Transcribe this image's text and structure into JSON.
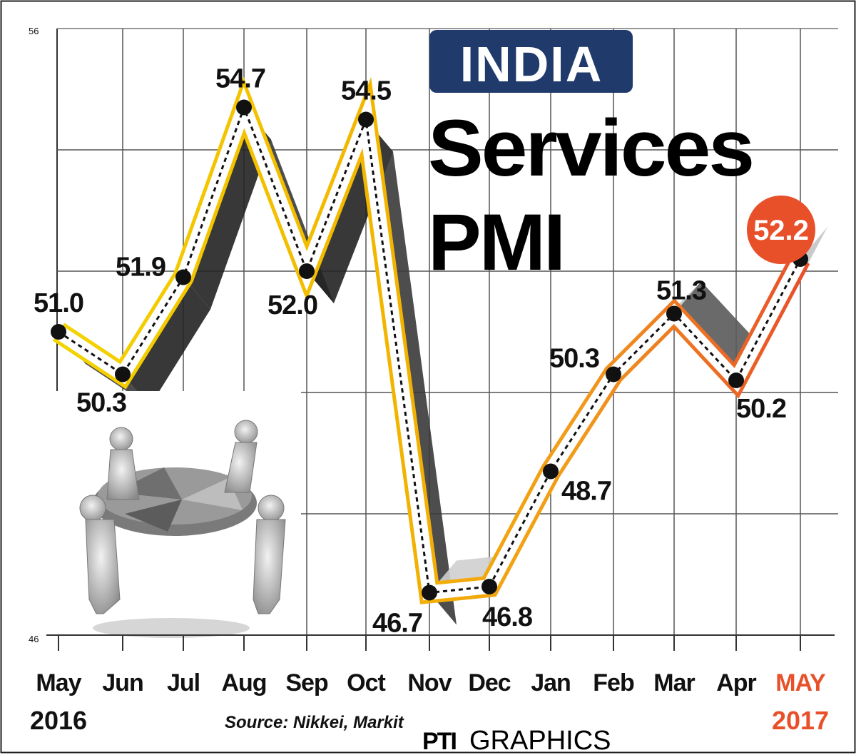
{
  "chart_data": {
    "type": "line",
    "title_tag": "INDIA",
    "title_line1": "Services",
    "title_line2": "PMI",
    "categories": [
      "May",
      "Jun",
      "Jul",
      "Aug",
      "Sep",
      "Oct",
      "Nov",
      "Dec",
      "Jan",
      "Feb",
      "Mar",
      "Apr",
      "MAY"
    ],
    "values": [
      51.0,
      50.3,
      51.9,
      54.7,
      52.0,
      54.5,
      46.7,
      46.8,
      48.7,
      50.3,
      51.3,
      50.2,
      52.2
    ],
    "value_labels": [
      "51.0",
      "50.3",
      "51.9",
      "54.7",
      "52.0",
      "54.5",
      "46.7",
      "46.8",
      "48.7",
      "50.3",
      "51.3",
      "50.2",
      "52.2"
    ],
    "ylim": [
      46,
      56
    ],
    "ytick_labels": [
      "56",
      "46"
    ],
    "start_year": "2016",
    "end_year": "2017",
    "source": "Source: Nikkei, Markit",
    "credit_brand": "PTI",
    "credit_text": "GRAPHICS",
    "grid": true,
    "colors": {
      "series_early": "#f2c200",
      "series_mid": "#f29a1a",
      "series_late": "#e8502a",
      "highlight": "#e8502a",
      "tag_bg": "#1f3a6b",
      "shadow_dark": "#2a2a2a",
      "shadow_light": "#b8b8b8"
    }
  }
}
